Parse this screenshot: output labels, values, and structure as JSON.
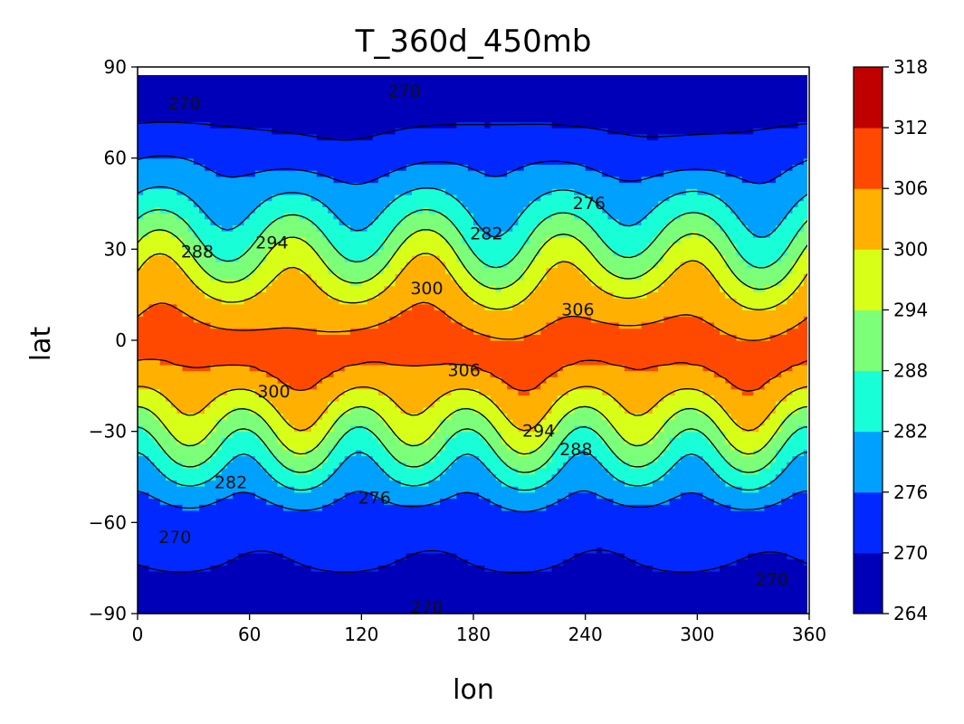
{
  "chart_data": {
    "type": "heatmap",
    "subtype": "filled-contour",
    "title": "T_360d_450mb",
    "xlabel": "lon",
    "ylabel": "lat",
    "xlim": [
      0,
      360
    ],
    "ylim": [
      -90,
      90
    ],
    "xticks": [
      0,
      60,
      120,
      180,
      240,
      300,
      360
    ],
    "yticks": [
      -90,
      -60,
      -30,
      0,
      30,
      60,
      90
    ],
    "ytick_labels": [
      "−90",
      "−60",
      "−30",
      "0",
      "30",
      "60",
      "90"
    ],
    "levels": [
      264,
      270,
      276,
      282,
      288,
      294,
      300,
      306,
      312,
      318
    ],
    "band_colors": [
      "#0000b8",
      "#0028ff",
      "#00a0ff",
      "#18ffd8",
      "#7cff79",
      "#d8ff18",
      "#ffb000",
      "#ff4800",
      "#c00000"
    ],
    "contour_line_color": "#000000",
    "colorbar": {
      "position": "right"
    },
    "contour_labels": [
      {
        "text": "270",
        "lon": 25,
        "lat": 78
      },
      {
        "text": "270",
        "lon": 143,
        "lat": 82
      },
      {
        "text": "276",
        "lon": 242,
        "lat": 45
      },
      {
        "text": "282",
        "lon": 187,
        "lat": 35
      },
      {
        "text": "288",
        "lon": 32,
        "lat": 29
      },
      {
        "text": "294",
        "lon": 72,
        "lat": 32
      },
      {
        "text": "300",
        "lon": 155,
        "lat": 17
      },
      {
        "text": "306",
        "lon": 236,
        "lat": 10
      },
      {
        "text": "306",
        "lon": 175,
        "lat": -10
      },
      {
        "text": "300",
        "lon": 73,
        "lat": -17
      },
      {
        "text": "294",
        "lon": 215,
        "lat": -30
      },
      {
        "text": "288",
        "lon": 235,
        "lat": -36
      },
      {
        "text": "282",
        "lon": 50,
        "lat": -47
      },
      {
        "text": "276",
        "lon": 127,
        "lat": -52
      },
      {
        "text": "270",
        "lon": 20,
        "lat": -65
      },
      {
        "text": "270",
        "lon": 340,
        "lat": -79
      },
      {
        "text": "270",
        "lon": 155,
        "lat": -88
      }
    ],
    "zonal_structure": [
      {
        "lat": 88,
        "value": 267
      },
      {
        "lat": 75,
        "value": 268
      },
      {
        "lat": 62,
        "value": 273
      },
      {
        "lat": 50,
        "value": 279
      },
      {
        "lat": 40,
        "value": 285
      },
      {
        "lat": 30,
        "value": 291
      },
      {
        "lat": 22,
        "value": 297
      },
      {
        "lat": 12,
        "value": 303
      },
      {
        "lat": 0,
        "value": 308
      },
      {
        "lat": -10,
        "value": 306
      },
      {
        "lat": -20,
        "value": 300
      },
      {
        "lat": -30,
        "value": 293
      },
      {
        "lat": -38,
        "value": 287
      },
      {
        "lat": -46,
        "value": 281
      },
      {
        "lat": -55,
        "value": 275
      },
      {
        "lat": -70,
        "value": 271
      },
      {
        "lat": -82,
        "value": 268
      },
      {
        "lat": -88,
        "value": 267
      }
    ]
  }
}
